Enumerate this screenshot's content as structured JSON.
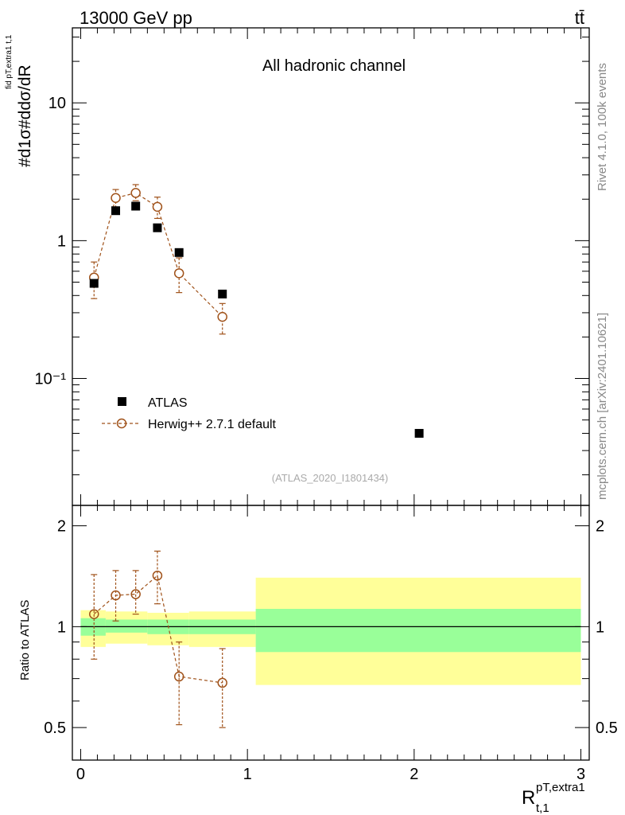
{
  "header": {
    "energy_label": "13000 GeV pp",
    "process_label": "tt̄"
  },
  "side_labels": {
    "rivet": "Rivet 4.1.0,  100k events",
    "mcplots": "mcplots.cern.ch [arXiv:2401.10621]"
  },
  "chart_data": {
    "type": "scatter",
    "title": "All hadronic channel",
    "analysis_tag": "(ATLAS_2020_I1801434)",
    "xlabel_main": "R",
    "xlabel_sup": "pT,extra1",
    "xlabel_sub": "t,1",
    "ylabel_main": "#d1σ#ddσ/dR",
    "ylabel_annotation": "fid pT,extra1 t,1",
    "ratio_ylabel": "Ratio to ATLAS",
    "xlim": [
      -0.05,
      3.05
    ],
    "ylim_main": [
      0.012,
      35
    ],
    "yscale_main": "log",
    "ylim_ratio": [
      0.4,
      2.3
    ],
    "yscale_ratio": "log",
    "x_ticks": [
      "0",
      "1",
      "2",
      "3"
    ],
    "y_ticks_main": [
      "10",
      "1",
      "10⁻¹"
    ],
    "y_ticks_ratio": [
      "2",
      "1",
      "0.5"
    ],
    "legend_position": "bottom-left",
    "series": [
      {
        "name": "ATLAS",
        "style": "filled-square",
        "color": "#000000",
        "points": [
          {
            "x": 0.08,
            "y": 0.49
          },
          {
            "x": 0.21,
            "y": 1.65
          },
          {
            "x": 0.33,
            "y": 1.78
          },
          {
            "x": 0.46,
            "y": 1.24
          },
          {
            "x": 0.59,
            "y": 0.82
          },
          {
            "x": 0.85,
            "y": 0.41
          },
          {
            "x": 2.03,
            "y": 0.04
          }
        ]
      },
      {
        "name": "Herwig++ 2.7.1 default",
        "style": "open-circle-dashed",
        "color": "#a0521a",
        "points": [
          {
            "x": 0.08,
            "y": 0.54,
            "lo": 0.38,
            "hi": 0.7
          },
          {
            "x": 0.21,
            "y": 2.04,
            "lo": 1.75,
            "hi": 2.35
          },
          {
            "x": 0.33,
            "y": 2.22,
            "lo": 1.95,
            "hi": 2.55
          },
          {
            "x": 0.46,
            "y": 1.76,
            "lo": 1.45,
            "hi": 2.07
          },
          {
            "x": 0.59,
            "y": 0.58,
            "lo": 0.42,
            "hi": 0.75
          },
          {
            "x": 0.85,
            "y": 0.28,
            "lo": 0.21,
            "hi": 0.35
          }
        ]
      }
    ],
    "ratio_series": [
      {
        "name": "Herwig++ 2.7.1 default",
        "points": [
          {
            "x": 0.08,
            "y": 1.09,
            "lo": 0.8,
            "hi": 1.43
          },
          {
            "x": 0.21,
            "y": 1.24,
            "lo": 1.04,
            "hi": 1.47
          },
          {
            "x": 0.33,
            "y": 1.25,
            "lo": 1.09,
            "hi": 1.47
          },
          {
            "x": 0.46,
            "y": 1.42,
            "lo": 1.17,
            "hi": 1.68
          },
          {
            "x": 0.59,
            "y": 0.71,
            "lo": 0.51,
            "hi": 0.9
          },
          {
            "x": 0.85,
            "y": 0.68,
            "lo": 0.5,
            "hi": 0.86
          }
        ]
      }
    ],
    "ratio_bands": [
      {
        "x0": 0.0,
        "x1": 0.15,
        "stat_lo": 0.94,
        "stat_hi": 1.06,
        "tot_lo": 0.87,
        "tot_hi": 1.12
      },
      {
        "x0": 0.15,
        "x1": 0.4,
        "stat_lo": 0.96,
        "stat_hi": 1.05,
        "tot_lo": 0.89,
        "tot_hi": 1.11
      },
      {
        "x0": 0.4,
        "x1": 0.65,
        "stat_lo": 0.95,
        "stat_hi": 1.05,
        "tot_lo": 0.88,
        "tot_hi": 1.1
      },
      {
        "x0": 0.65,
        "x1": 1.05,
        "stat_lo": 0.95,
        "stat_hi": 1.05,
        "tot_lo": 0.87,
        "tot_hi": 1.11
      },
      {
        "x0": 1.05,
        "x1": 3.0,
        "stat_lo": 0.84,
        "stat_hi": 1.13,
        "tot_lo": 0.67,
        "tot_hi": 1.4
      }
    ],
    "band_colors": {
      "stat": "#99ff99",
      "total": "#ffff99"
    }
  }
}
